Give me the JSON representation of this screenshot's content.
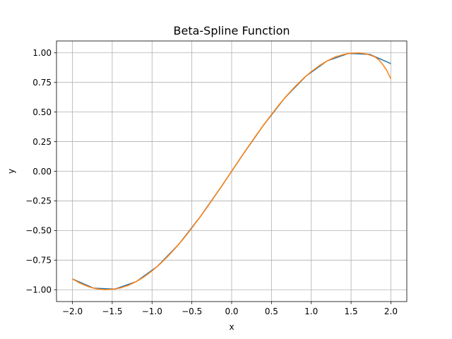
{
  "chart_data": {
    "type": "line",
    "title": "Beta-Spline Function",
    "xlabel": "x",
    "ylabel": "y",
    "xlim": [
      -2.2,
      2.2
    ],
    "ylim": [
      -1.1,
      1.1
    ],
    "xticks": [
      -2.0,
      -1.5,
      -1.0,
      -0.5,
      0.0,
      0.5,
      1.0,
      1.5,
      2.0
    ],
    "xtick_labels": [
      "−2.0",
      "−1.5",
      "−1.0",
      "−0.5",
      "0.0",
      "0.5",
      "1.0",
      "1.5",
      "2.0"
    ],
    "yticks": [
      -1.0,
      -0.75,
      -0.5,
      -0.25,
      0.0,
      0.25,
      0.5,
      0.75,
      1.0
    ],
    "ytick_labels": [
      "−1.00",
      "−0.75",
      "−0.50",
      "−0.25",
      "0.00",
      "0.25",
      "0.50",
      "0.75",
      "1.00"
    ],
    "grid": true,
    "series": [
      {
        "color": "#1f77b4",
        "x": [
          -2.0,
          -1.733,
          -1.467,
          -1.2,
          -0.933,
          -0.667,
          -0.4,
          -0.133,
          0.133,
          0.4,
          0.667,
          0.933,
          1.2,
          1.467,
          1.733,
          2.0
        ],
        "y": [
          -0.909,
          -0.987,
          -0.995,
          -0.932,
          -0.803,
          -0.619,
          -0.389,
          -0.133,
          0.133,
          0.389,
          0.619,
          0.803,
          0.932,
          0.995,
          0.987,
          0.909
        ]
      },
      {
        "color": "#ff7f0e",
        "x": [
          -2.0,
          -1.9,
          -1.8,
          -1.7,
          -1.6,
          -1.5,
          -1.4,
          -1.3,
          -1.2,
          -1.1,
          -1.0,
          -0.9,
          -0.8,
          -0.7,
          -0.6,
          -0.5,
          -0.4,
          -0.3,
          -0.2,
          -0.1,
          0.0,
          0.1,
          0.2,
          0.3,
          0.4,
          0.5,
          0.6,
          0.7,
          0.8,
          0.9,
          1.0,
          1.1,
          1.2,
          1.3,
          1.4,
          1.5,
          1.6,
          1.7,
          1.8,
          1.85,
          1.9,
          1.95,
          2.0
        ],
        "y": [
          -0.909,
          -0.946,
          -0.974,
          -0.992,
          -0.999,
          -0.997,
          -0.985,
          -0.964,
          -0.932,
          -0.891,
          -0.841,
          -0.783,
          -0.717,
          -0.644,
          -0.565,
          -0.479,
          -0.389,
          -0.296,
          -0.199,
          -0.1,
          0.0,
          0.1,
          0.199,
          0.296,
          0.389,
          0.479,
          0.565,
          0.644,
          0.717,
          0.783,
          0.841,
          0.891,
          0.932,
          0.964,
          0.985,
          0.997,
          0.999,
          0.99,
          0.965,
          0.94,
          0.9,
          0.85,
          0.78
        ]
      }
    ]
  }
}
